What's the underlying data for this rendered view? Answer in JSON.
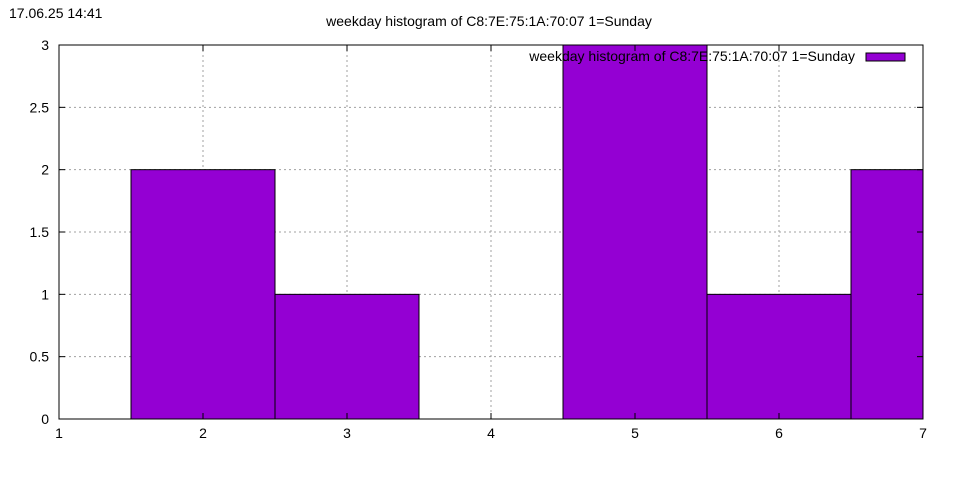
{
  "timestamp": "17.06.25 14:41",
  "chart_data": {
    "type": "bar",
    "title": "weekday histogram of C8:7E:75:1A:70:07 1=Sunday",
    "xlabel": "",
    "ylabel": "",
    "xlim": [
      1,
      7
    ],
    "ylim": [
      0,
      3
    ],
    "x_ticks": [
      "1",
      "2",
      "3",
      "4",
      "5",
      "6",
      "7"
    ],
    "y_ticks": [
      "0",
      "0.5",
      "1",
      "1.5",
      "2",
      "2.5",
      "3"
    ],
    "x_tick_values": [
      1,
      2,
      3,
      4,
      5,
      6,
      7
    ],
    "y_tick_values": [
      0,
      0.5,
      1,
      1.5,
      2,
      2.5,
      3
    ],
    "grid": true,
    "legend_position": "top-right",
    "bar_width": 1,
    "series": [
      {
        "name": "weekday histogram of C8:7E:75:1A:70:07 1=Sunday",
        "color": "#9400D3",
        "x": [
          2,
          3,
          5,
          6,
          7
        ],
        "values": [
          2,
          1,
          3,
          1,
          2
        ]
      }
    ]
  }
}
